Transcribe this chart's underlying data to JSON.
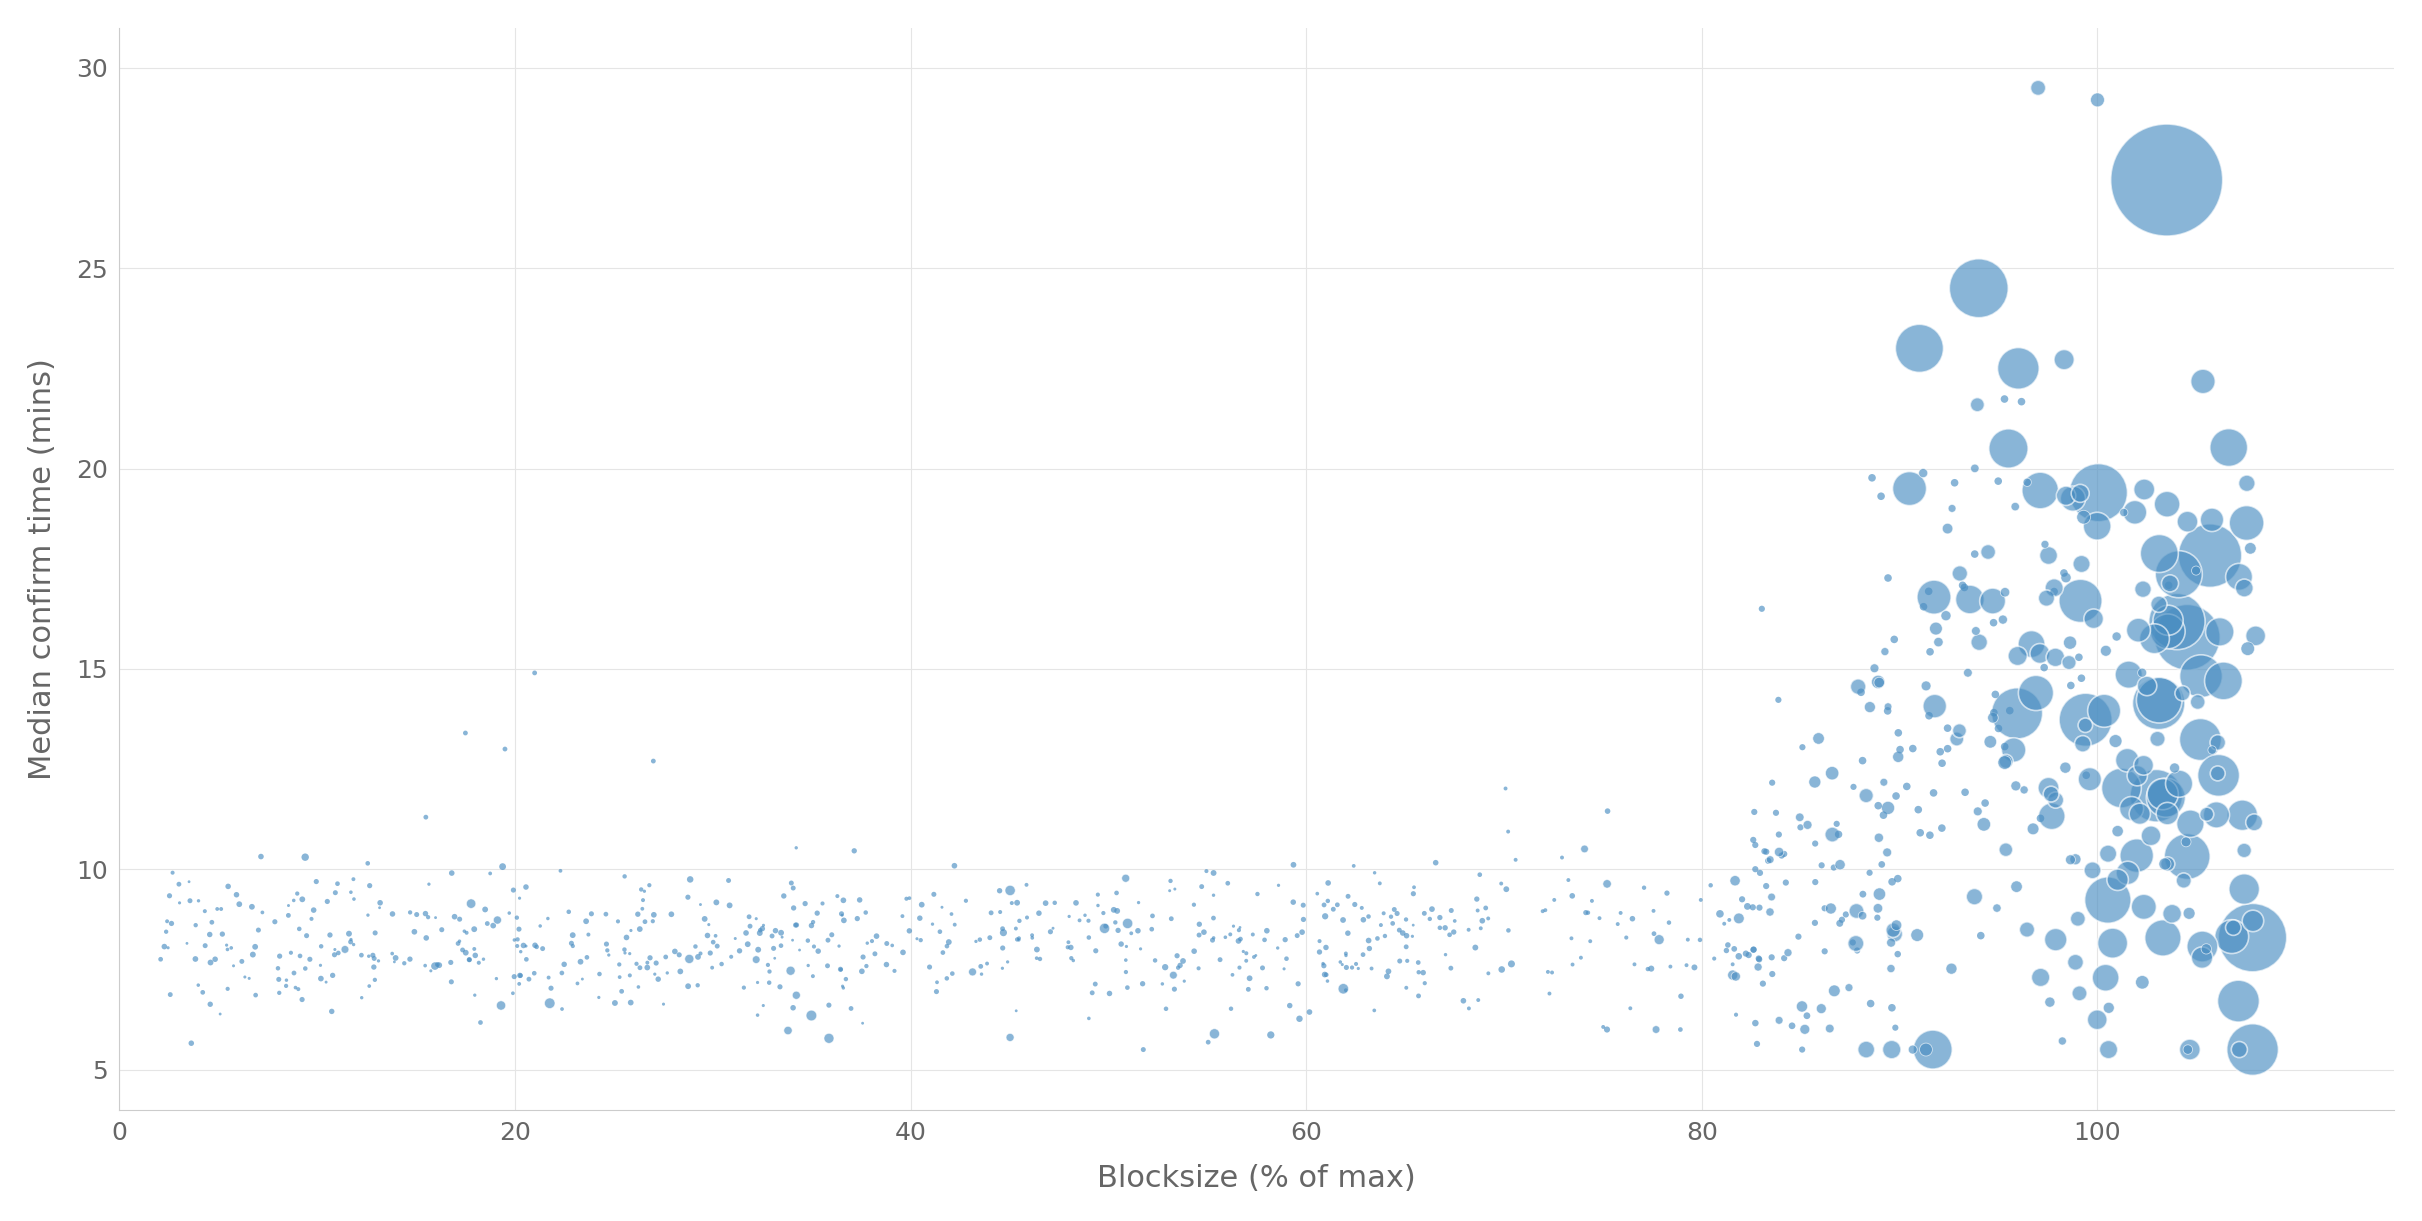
{
  "xlabel": "Blocksize (% of max)",
  "ylabel": "Median confirm time (mins)",
  "xlim": [
    0,
    115
  ],
  "ylim": [
    4,
    31
  ],
  "xticks": [
    0,
    20,
    40,
    60,
    80,
    100
  ],
  "yticks": [
    5,
    10,
    15,
    20,
    25,
    30
  ],
  "background_color": "#ffffff",
  "grid_color": "#e5e5e5",
  "dot_color": "#4a8ec2",
  "dot_alpha": 0.65,
  "edge_color": "#ffffff",
  "edge_alpha": 1.0,
  "seed": 7
}
